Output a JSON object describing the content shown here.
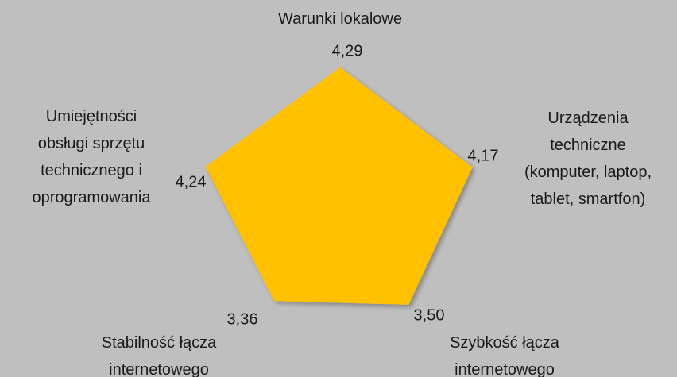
{
  "chart_data": {
    "type": "radar",
    "categories": [
      [
        "Warunki lokalowe"
      ],
      [
        "Urządzenia",
        "techniczne",
        "(komputer, laptop,",
        "tablet, smartfon)"
      ],
      [
        "Szybkość łącza",
        "internetowego"
      ],
      [
        "Stabilność łącza",
        "internetowego"
      ],
      [
        "Umiejętności",
        "obsługi sprzętu",
        "technicznego i",
        "oprogramowania"
      ]
    ],
    "values": [
      4.29,
      4.17,
      3.5,
      3.36,
      4.24
    ],
    "value_labels": [
      "4,29",
      "4,17",
      "3,50",
      "3,36",
      "4,24"
    ],
    "color": "#ffc000",
    "ylim": [
      0,
      5
    ]
  }
}
